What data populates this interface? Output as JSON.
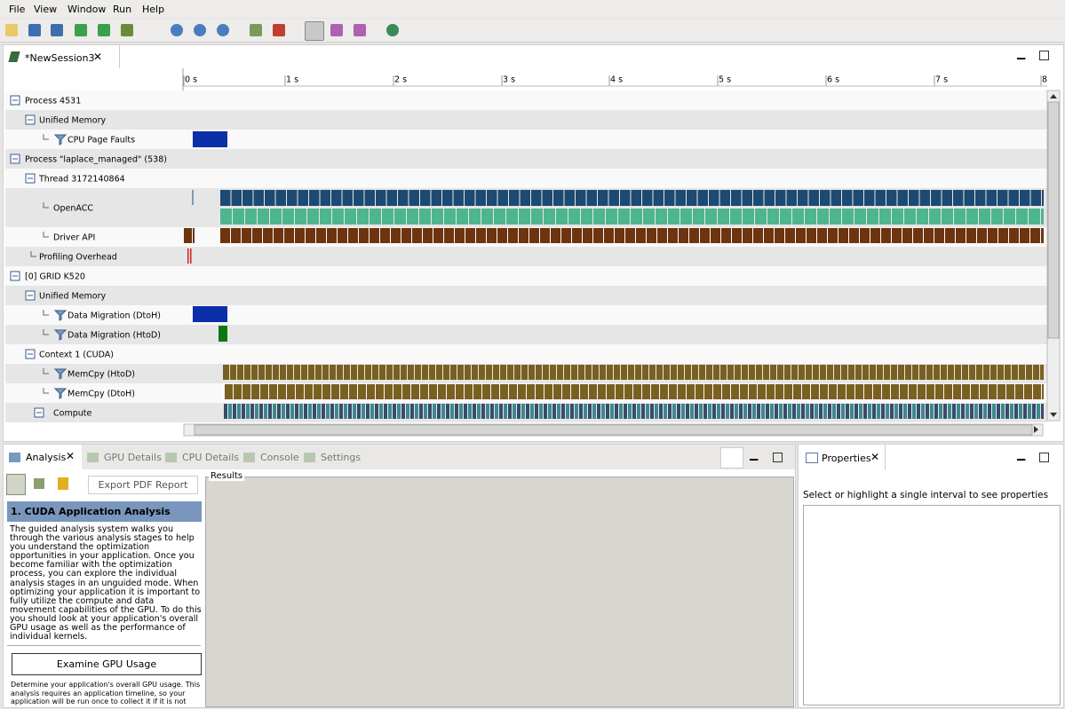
{
  "menu": [
    "File",
    "View",
    "Window",
    "Run",
    "Help"
  ],
  "session_tab": "*NewSession3",
  "timeline": {
    "ruler": [
      "0 s",
      "1 s",
      "2 s",
      "3 s",
      "4 s",
      "5 s",
      "6 s",
      "7 s",
      "8"
    ],
    "rows": [
      "Process 4531",
      "Unified Memory",
      "CPU Page Faults",
      "Process \"laplace_managed\" (538)",
      "Thread 3172140864",
      "OpenACC",
      "Driver API",
      "Profiling Overhead",
      "[0] GRID K520",
      "Unified Memory",
      "Data Migration (DtoH)",
      "Data Migration (HtoD)",
      "Context 1 (CUDA)",
      "MemCpy (HtoD)",
      "MemCpy (DtoH)",
      "Compute"
    ]
  },
  "bottom_tabs": [
    "Analysis",
    "GPU Details",
    "CPU Details",
    "Console",
    "Settings"
  ],
  "export_button": "Export PDF Report",
  "results_label": "Results",
  "analysis": {
    "header": "1. CUDA Application Analysis",
    "text": "The guided analysis system walks you through the various analysis stages to help you understand the optimization opportunities in your application. Once you become familiar with the optimization process, you can explore the individual analysis stages in an unguided mode. When optimizing your application it is important to fully utilize the compute and data movement capabilities of the GPU. To do this you should look at your application's overall GPU usage as well as the performance of individual kernels.",
    "button": "Examine GPU Usage",
    "button_text": "Determine your application's overall GPU usage. This analysis requires an application timeline, so your application will be run once to collect it if it is not"
  },
  "properties": {
    "tab": "Properties",
    "hint": "Select or highlight a single interval to see properties"
  }
}
